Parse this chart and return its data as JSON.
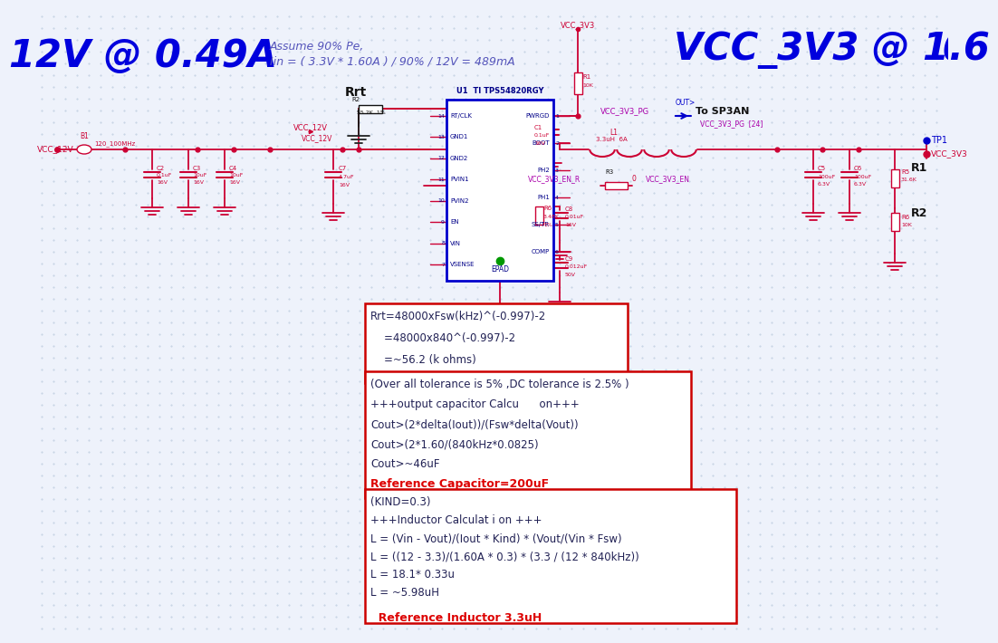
{
  "bg_color": "#eef2fb",
  "dot_color": "#b8c8dc",
  "title_left": "12V @ 0.49A",
  "title_right": "VCC_3V3 @ 1.6",
  "title_color": "#0000dd",
  "subtitle_line1": "Assume 90% Pe,",
  "subtitle_line2": "Iin = ( 3.3V * 1.60A ) / 90% / 12V = 489mA",
  "subtitle_color": "#5555bb",
  "box1_text_lines": [
    "Rrt=48000xFsw(kHz)^(-0.997)-2",
    "    =48000x840^(-0.997)-2",
    "    =~56.2 (k ohms)"
  ],
  "box2_text_lines": [
    "(Over all tolerance is 5% ,DC tolerance is 2.5% )",
    "+++output capacitor Calcu      on+++",
    "Cout>(2*delta(Iout))/(Fsw*delta(Vout))",
    "Cout>(2*1.60/(840kHz*0.0825)",
    "Cout>~46uF"
  ],
  "box2_red": "Reference Capacitor=200uF",
  "box3_text_lines": [
    "(KIND=0.3)",
    "+++Inductor Calculat i on +++",
    "L = (Vin - Vout)/(Iout * Kind) * (Vout/(Vin * Fsw)",
    "L = ((12 - 3.3)/(1.60A * 0.3) * (3.3 / (12 * 840kHz))",
    "L = 18.1* 0.33u",
    "L = ~5.98uH"
  ],
  "box3_red": "  Reference Inductor 3.3uH",
  "border_color": "#cc0000",
  "text_dark": "#222255",
  "red_text": "#dd0000",
  "mc": "#cc0033",
  "mb": "#0000cc",
  "mm": "#aa00aa",
  "mk": "#880000"
}
